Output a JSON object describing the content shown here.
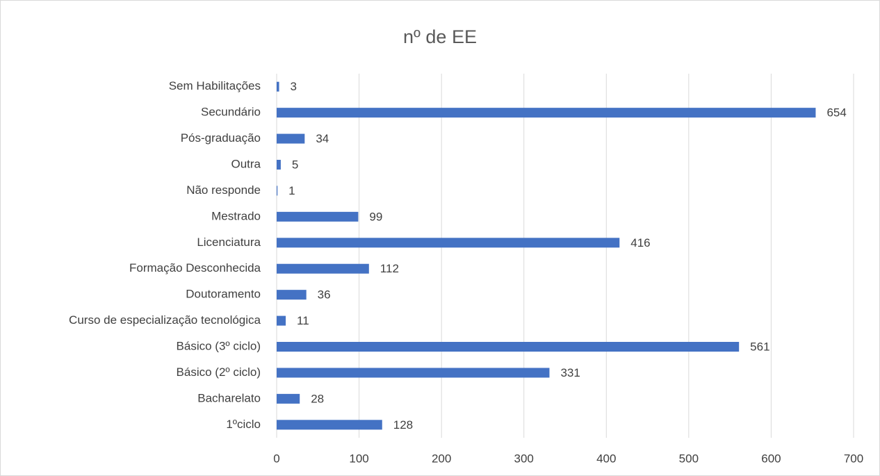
{
  "chart_data": {
    "type": "bar",
    "orientation": "horizontal",
    "title": "nº de EE",
    "categories": [
      "Sem Habilitações",
      "Secundário",
      "Pós-graduação",
      "Outra",
      "Não responde",
      "Mestrado",
      "Licenciatura",
      "Formação Desconhecida",
      "Doutoramento",
      "Curso de especialização tecnológica",
      "Básico (3º ciclo)",
      "Básico (2º ciclo)",
      "Bacharelato",
      "1ºciclo"
    ],
    "values": [
      3,
      654,
      34,
      5,
      1,
      99,
      416,
      112,
      36,
      11,
      561,
      331,
      28,
      128
    ],
    "color": "#4472c4",
    "xlim": [
      0,
      700
    ],
    "xticks": [
      0,
      100,
      200,
      300,
      400,
      500,
      600,
      700
    ],
    "grid": true
  }
}
